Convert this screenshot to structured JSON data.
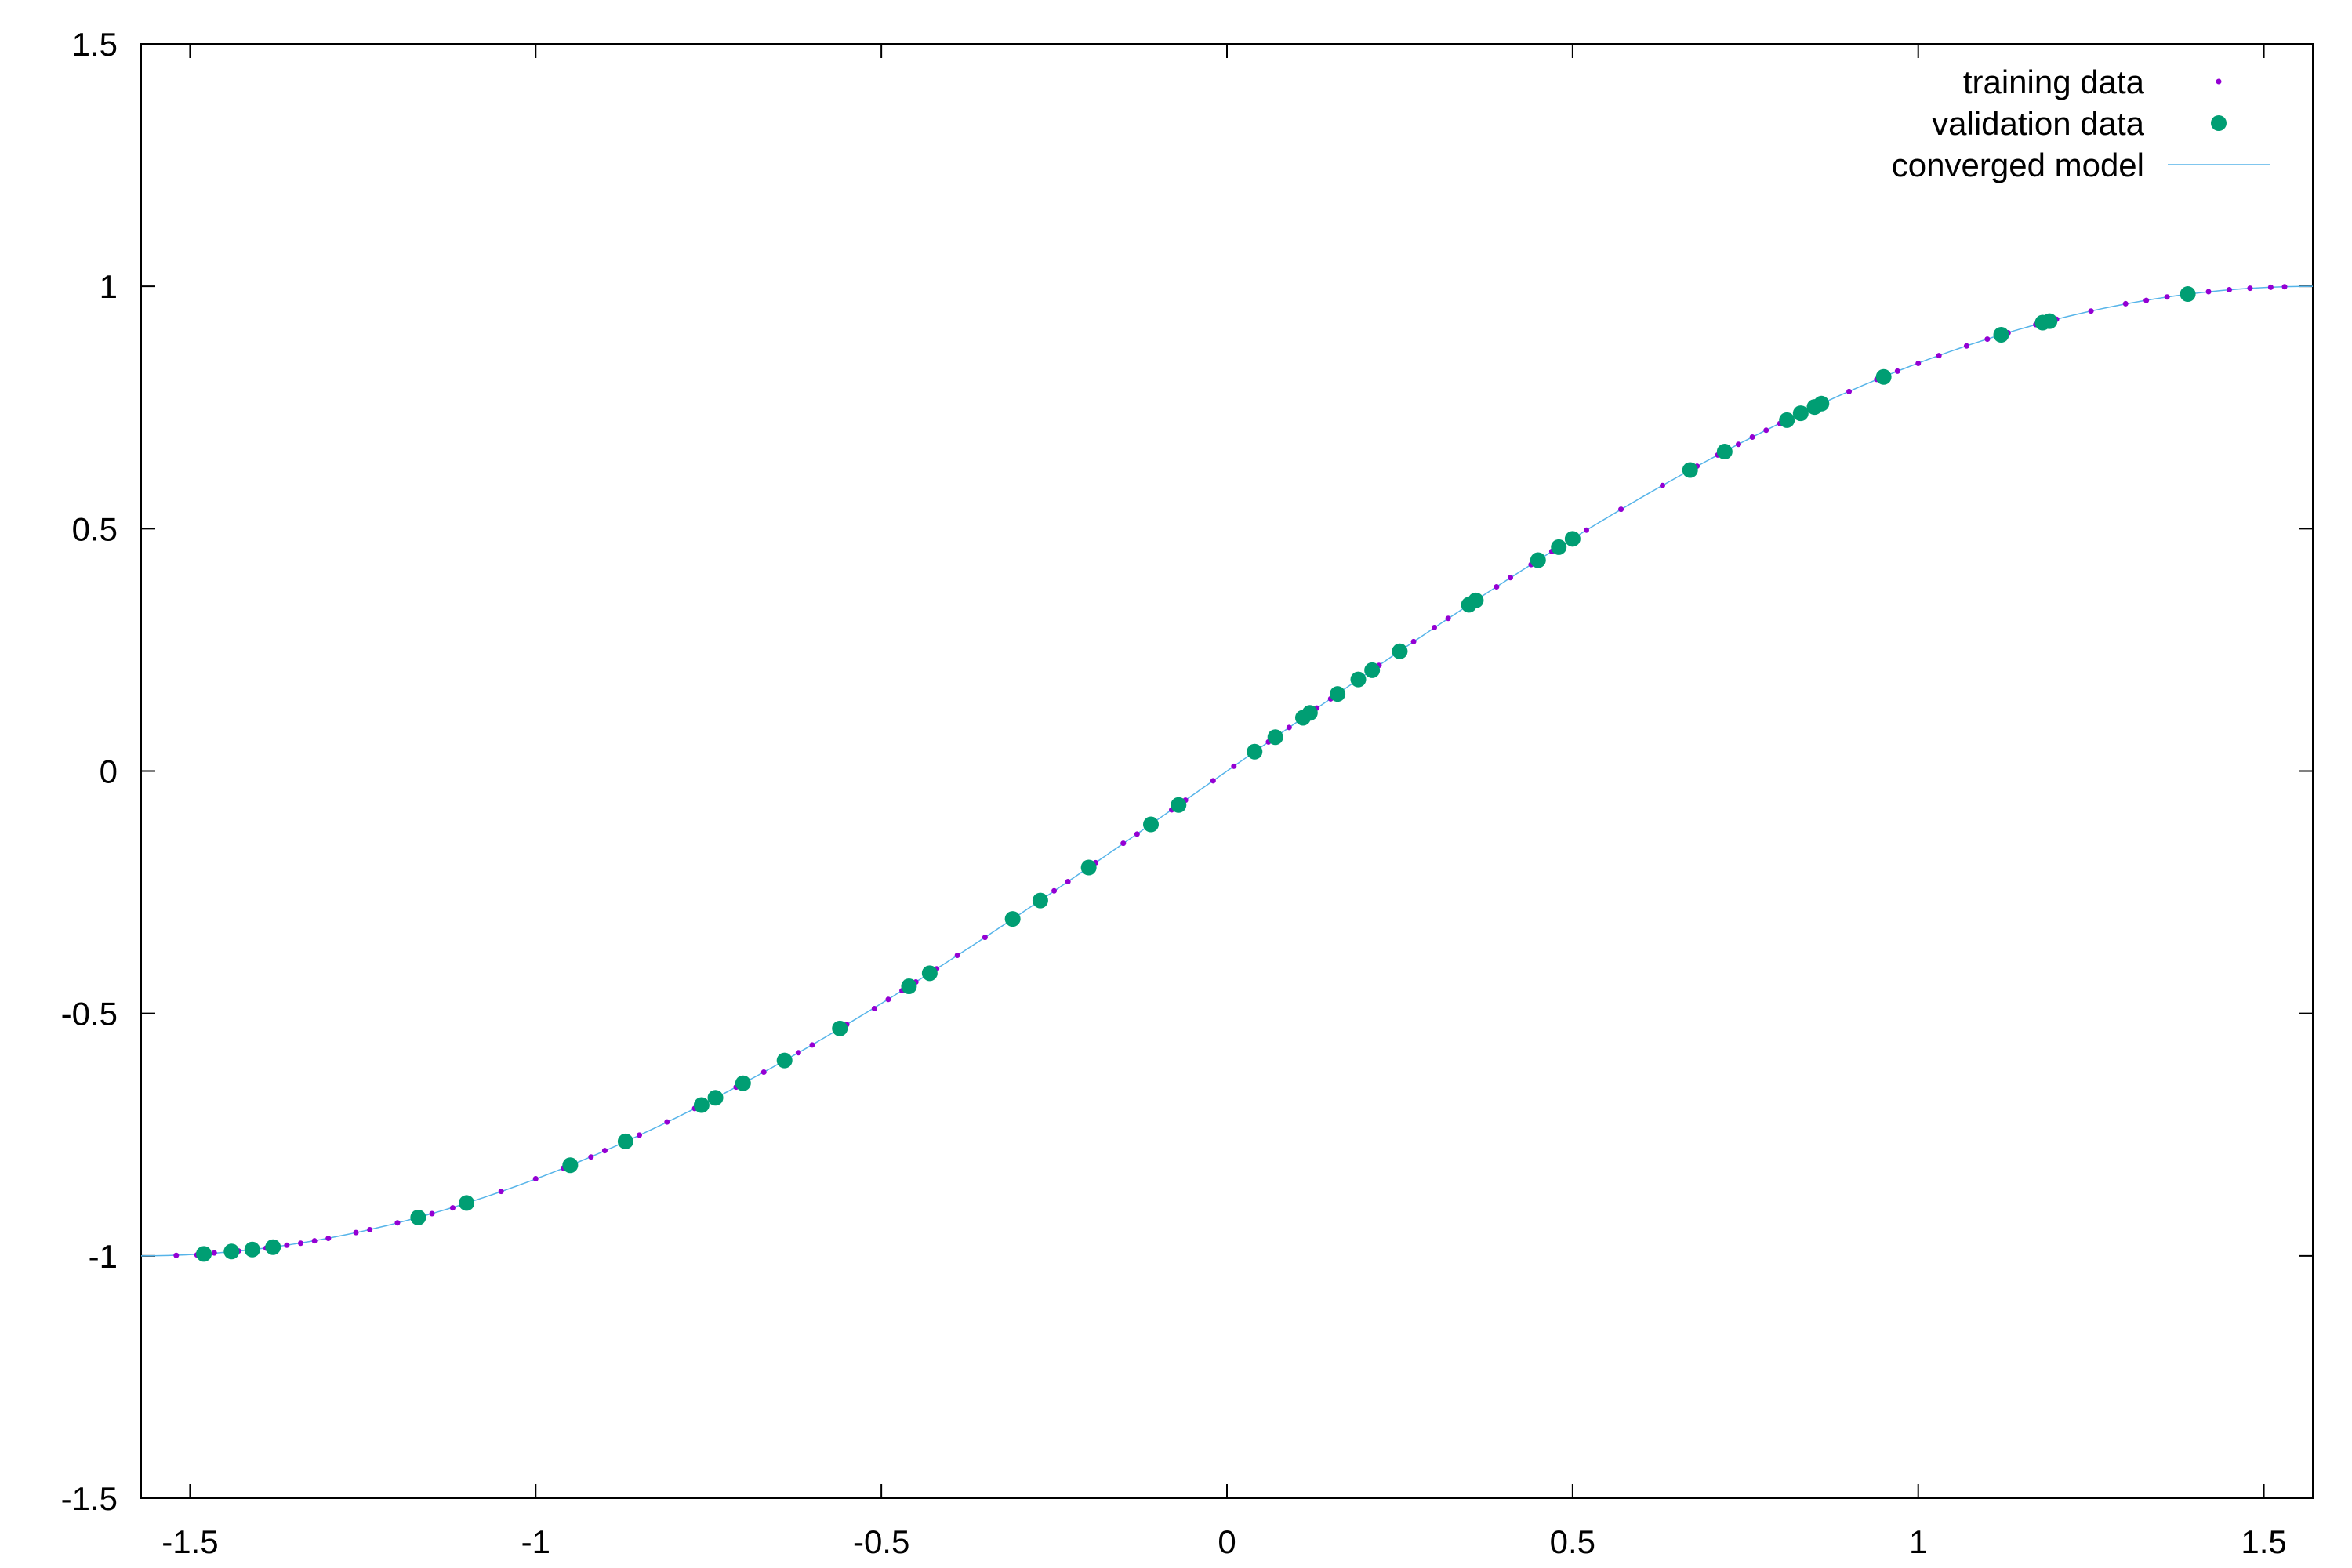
{
  "chart_data": {
    "type": "scatter",
    "title": "",
    "xlabel": "",
    "ylabel": "",
    "xlim": [
      -1.5708,
      1.5708
    ],
    "ylim": [
      -1.5,
      1.5
    ],
    "x_ticks": [
      "-1.5",
      "-1",
      "-0.5",
      "0",
      "0.5",
      "1",
      "1.5"
    ],
    "y_ticks": [
      "-1.5",
      "-1",
      "-0.5",
      "0",
      "0.5",
      "1",
      "1.5"
    ],
    "grid": false,
    "legend_position": "top-right",
    "colors": {
      "training": "#9400d3",
      "validation": "#009e73",
      "model": "#56b4e9"
    },
    "series": [
      {
        "name": "training data",
        "style": "points-small",
        "x": [
          -1.52,
          -1.49,
          -1.465,
          -1.43,
          -1.41,
          -1.39,
          -1.36,
          -1.34,
          -1.32,
          -1.3,
          -1.26,
          -1.24,
          -1.2,
          -1.15,
          -1.12,
          -1.1,
          -1.05,
          -1.0,
          -0.96,
          -0.92,
          -0.9,
          -0.87,
          -0.85,
          -0.81,
          -0.77,
          -0.74,
          -0.71,
          -0.67,
          -0.62,
          -0.6,
          -0.55,
          -0.51,
          -0.49,
          -0.47,
          -0.45,
          -0.42,
          -0.39,
          -0.35,
          -0.31,
          -0.25,
          -0.23,
          -0.19,
          -0.15,
          -0.13,
          -0.08,
          -0.06,
          -0.02,
          0.01,
          0.04,
          0.06,
          0.09,
          0.13,
          0.15,
          0.19,
          0.22,
          0.27,
          0.3,
          0.32,
          0.36,
          0.39,
          0.41,
          0.44,
          0.47,
          0.52,
          0.57,
          0.63,
          0.68,
          0.71,
          0.74,
          0.76,
          0.78,
          0.8,
          0.83,
          0.86,
          0.9,
          0.94,
          0.97,
          1.0,
          1.03,
          1.07,
          1.1,
          1.13,
          1.17,
          1.2,
          1.25,
          1.3,
          1.33,
          1.36,
          1.42,
          1.45,
          1.48,
          1.51,
          1.53
        ],
        "y": [
          -0.999,
          -0.998,
          -0.994,
          -0.99,
          -0.985,
          -0.984,
          -0.978,
          -0.974,
          -0.969,
          -0.964,
          -0.952,
          -0.946,
          -0.932,
          -0.913,
          -0.901,
          -0.891,
          -0.867,
          -0.841,
          -0.819,
          -0.796,
          -0.783,
          -0.764,
          -0.751,
          -0.724,
          -0.696,
          -0.674,
          -0.652,
          -0.621,
          -0.581,
          -0.565,
          -0.523,
          -0.49,
          -0.471,
          -0.453,
          -0.435,
          -0.408,
          -0.38,
          -0.343,
          -0.305,
          -0.247,
          -0.228,
          -0.189,
          -0.149,
          -0.13,
          -0.08,
          -0.06,
          -0.02,
          0.01,
          0.04,
          0.06,
          0.09,
          0.13,
          0.149,
          0.189,
          0.218,
          0.267,
          0.296,
          0.315,
          0.352,
          0.38,
          0.399,
          0.426,
          0.453,
          0.497,
          0.54,
          0.589,
          0.629,
          0.652,
          0.674,
          0.689,
          0.703,
          0.717,
          0.738,
          0.758,
          0.783,
          0.808,
          0.825,
          0.841,
          0.857,
          0.877,
          0.891,
          0.904,
          0.921,
          0.932,
          0.949,
          0.964,
          0.971,
          0.978,
          0.989,
          0.993,
          0.996,
          0.998,
          0.999
        ]
      },
      {
        "name": "validation data",
        "style": "points-large",
        "x": [
          -1.48,
          -1.44,
          -1.41,
          -1.38,
          -1.17,
          -1.1,
          -0.95,
          -0.87,
          -0.76,
          -0.74,
          -0.7,
          -0.64,
          -0.56,
          -0.46,
          -0.43,
          -0.31,
          -0.27,
          -0.2,
          -0.11,
          -0.07,
          0.04,
          0.07,
          0.11,
          0.12,
          0.16,
          0.19,
          0.21,
          0.25,
          0.35,
          0.36,
          0.45,
          0.48,
          0.5,
          0.67,
          0.72,
          0.81,
          0.83,
          0.85,
          0.86,
          0.95,
          1.12,
          1.18,
          1.19,
          1.39
        ],
        "y": [
          -0.996,
          -0.991,
          -0.987,
          -0.982,
          -0.921,
          -0.891,
          -0.813,
          -0.764,
          -0.689,
          -0.674,
          -0.644,
          -0.597,
          -0.531,
          -0.444,
          -0.417,
          -0.305,
          -0.267,
          -0.199,
          -0.11,
          -0.07,
          0.04,
          0.07,
          0.11,
          0.12,
          0.159,
          0.189,
          0.208,
          0.247,
          0.343,
          0.352,
          0.435,
          0.462,
          0.479,
          0.621,
          0.659,
          0.724,
          0.738,
          0.751,
          0.758,
          0.813,
          0.9,
          0.925,
          0.928,
          0.984
        ]
      },
      {
        "name": "converged model",
        "style": "line",
        "function": "sin(x)",
        "x_range": [
          -1.5708,
          1.5708
        ]
      }
    ]
  }
}
